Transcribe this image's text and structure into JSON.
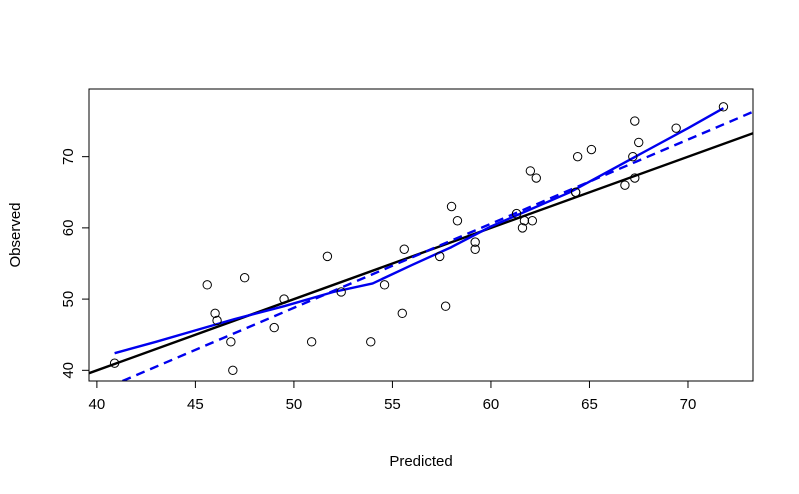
{
  "chart_data": {
    "type": "scatter",
    "title": "",
    "xlabel": "Predicted",
    "ylabel": "Observed",
    "xlim": [
      39.6,
      73.3
    ],
    "ylim": [
      38.5,
      79.5
    ],
    "x_ticks": [
      40,
      45,
      50,
      55,
      60,
      65,
      70
    ],
    "y_ticks": [
      40,
      50,
      60,
      70
    ],
    "grid": false,
    "legend": "none",
    "points": [
      {
        "x": 40.9,
        "y": 41
      },
      {
        "x": 45.6,
        "y": 52
      },
      {
        "x": 46.0,
        "y": 48
      },
      {
        "x": 46.1,
        "y": 47
      },
      {
        "x": 46.8,
        "y": 44
      },
      {
        "x": 46.9,
        "y": 40
      },
      {
        "x": 47.5,
        "y": 53
      },
      {
        "x": 49.0,
        "y": 46
      },
      {
        "x": 49.5,
        "y": 50
      },
      {
        "x": 50.9,
        "y": 44
      },
      {
        "x": 51.7,
        "y": 56
      },
      {
        "x": 52.4,
        "y": 51
      },
      {
        "x": 53.9,
        "y": 44
      },
      {
        "x": 54.6,
        "y": 52
      },
      {
        "x": 55.5,
        "y": 48
      },
      {
        "x": 55.6,
        "y": 57
      },
      {
        "x": 57.4,
        "y": 56
      },
      {
        "x": 57.7,
        "y": 49
      },
      {
        "x": 58.0,
        "y": 63
      },
      {
        "x": 58.3,
        "y": 61
      },
      {
        "x": 59.2,
        "y": 57
      },
      {
        "x": 59.2,
        "y": 58
      },
      {
        "x": 61.3,
        "y": 62
      },
      {
        "x": 61.6,
        "y": 60
      },
      {
        "x": 61.7,
        "y": 61
      },
      {
        "x": 62.0,
        "y": 68
      },
      {
        "x": 62.1,
        "y": 61
      },
      {
        "x": 62.3,
        "y": 67
      },
      {
        "x": 64.3,
        "y": 65
      },
      {
        "x": 64.3,
        "y": 65
      },
      {
        "x": 64.4,
        "y": 70
      },
      {
        "x": 65.1,
        "y": 71
      },
      {
        "x": 66.8,
        "y": 66
      },
      {
        "x": 67.2,
        "y": 70
      },
      {
        "x": 67.3,
        "y": 75
      },
      {
        "x": 67.3,
        "y": 67
      },
      {
        "x": 67.5,
        "y": 72
      },
      {
        "x": 69.4,
        "y": 74
      },
      {
        "x": 71.8,
        "y": 77
      }
    ],
    "series": [
      {
        "style": "solid",
        "color": "#000000",
        "x": [
          39.6,
          73.3
        ],
        "y": [
          39.6,
          73.3
        ]
      },
      {
        "style": "solid",
        "color": "#0000ee",
        "x": [
          40.9,
          43.0,
          45.0,
          47.0,
          49.5,
          52.0,
          54.0,
          56.0,
          58.0,
          60.0,
          62.0,
          64.0,
          66.0,
          68.0,
          70.0,
          71.8
        ],
        "y": [
          42.4,
          44.0,
          45.6,
          47.2,
          49.0,
          51.0,
          52.2,
          54.8,
          57.3,
          60.2,
          62.6,
          65.0,
          68.0,
          71.0,
          74.0,
          76.8
        ]
      },
      {
        "style": "dashed",
        "color": "#0000ee",
        "x": [
          41.3,
          73.3
        ],
        "y": [
          38.5,
          76.3
        ]
      }
    ]
  }
}
